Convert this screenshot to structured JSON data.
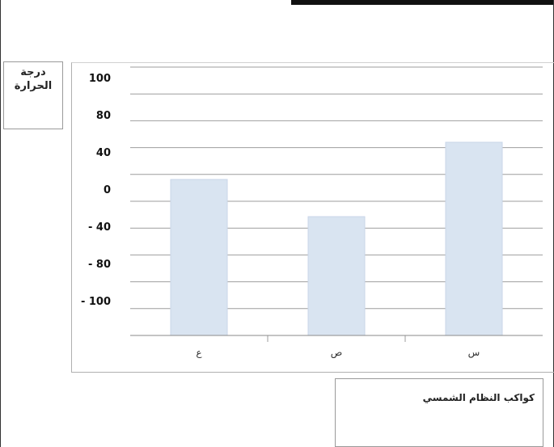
{
  "chart_data": {
    "type": "bar",
    "title": "",
    "ylabel": "درجة الحرارة",
    "xlabel": "كواكب النظام الشمسي",
    "categories": [
      "ع",
      "ص",
      "س"
    ],
    "values": [
      40,
      0,
      80
    ],
    "y_tick_labels": [
      "100",
      "80",
      "40",
      "0",
      "- 40",
      "- 80",
      "- 100"
    ],
    "grid": true,
    "bar_color": "#d9e4f1"
  }
}
